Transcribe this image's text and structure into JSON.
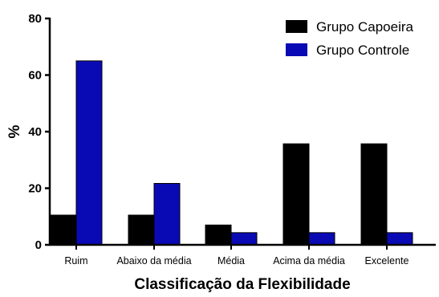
{
  "chart_data": {
    "type": "bar",
    "categories": [
      "Ruim",
      "Abaixo da média",
      "Média",
      "Acima da média",
      "Excelente"
    ],
    "series": [
      {
        "name": "Grupo Capoeira",
        "values": [
          10.5,
          10.5,
          7,
          35.7,
          35.7
        ],
        "color": "#000000"
      },
      {
        "name": "Grupo Controle",
        "values": [
          65,
          21.7,
          4.3,
          4.3,
          4.3
        ],
        "color": "#0a0ab4"
      }
    ],
    "xlabel": "Classificação da Flexibilidade",
    "ylabel": "%",
    "ylim": [
      0,
      80
    ],
    "yticks": [
      0,
      20,
      40,
      60,
      80
    ],
    "grid": false,
    "legend_position": "top-right"
  }
}
